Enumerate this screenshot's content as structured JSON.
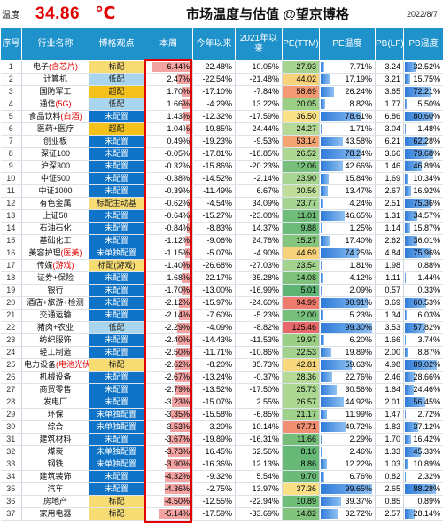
{
  "header": {
    "label": "温度",
    "temperature": "34.86",
    "unit": "℃",
    "title": "市场温度与估值 @望京博格",
    "date": "2022/8/7"
  },
  "columns": [
    "序号",
    "行业名称",
    "博格观点",
    "本周",
    "今年以来",
    "2021年以来",
    "PE(TTM)",
    "PE温度",
    "PB(LF)",
    "PB温度"
  ],
  "colors": {
    "header_bg": "#1f92cc",
    "underweight": "#0f73c7",
    "lowweight": "#a9d6ee",
    "overweight": "#f4c21b",
    "week_bar": "#f4a3a3",
    "highlight_red": "#e00000"
  },
  "rows": [
    {
      "seq": "1",
      "name": "电子",
      "sub": "(含芯片)",
      "view": "标配",
      "vc": "h",
      "week": "6.44%",
      "ytd": "-22.48%",
      "since21": "-10.05%",
      "pe": "27.93",
      "pe_temp": "7.71%",
      "pb": "3.24",
      "pb_temp": "32.52%",
      "pe_level": 0.077,
      "pb_level": 0.325,
      "week_mag": 1.0,
      "pe_c": "#a6d490"
    },
    {
      "seq": "2",
      "name": "计算机",
      "sub": "",
      "view": "低配",
      "vc": "l",
      "week": "2.47%",
      "ytd": "-22.54%",
      "since21": "-21.48%",
      "pe": "44.02",
      "pe_temp": "17.19%",
      "pb": "3.21",
      "pb_temp": "15.75%",
      "pe_level": 0.172,
      "pb_level": 0.158,
      "week_mag": 0.38,
      "pe_c": "#f8d37a"
    },
    {
      "seq": "3",
      "name": "国防军工",
      "sub": "",
      "view": "超配",
      "vc": "o",
      "week": "1.70%",
      "ytd": "-17.10%",
      "since21": "-7.84%",
      "pe": "58.69",
      "pe_temp": "26.24%",
      "pb": "3.65",
      "pb_temp": "72.21%",
      "pe_level": 0.262,
      "pb_level": 0.722,
      "week_mag": 0.26,
      "pe_c": "#f39a74"
    },
    {
      "seq": "4",
      "name": "通信",
      "sub": "(5G)",
      "view": "低配",
      "vc": "l",
      "week": "1.66%",
      "ytd": "-4.29%",
      "since21": "13.22%",
      "pe": "20.05",
      "pe_temp": "8.82%",
      "pb": "1.77",
      "pb_temp": "5.50%",
      "pe_level": 0.088,
      "pb_level": 0.055,
      "week_mag": 0.26,
      "pe_c": "#9ccf86"
    },
    {
      "seq": "5",
      "name": "食品饮料",
      "sub": "(白酒)",
      "view": "未配置",
      "vc": "u",
      "week": "1.43%",
      "ytd": "-12.32%",
      "since21": "-17.59%",
      "pe": "36.50",
      "pe_temp": "78.61%",
      "pb": "6.86",
      "pb_temp": "80.60%",
      "pe_level": 0.786,
      "pb_level": 0.806,
      "week_mag": 0.22,
      "pe_c": "#fae087"
    },
    {
      "seq": "6",
      "name": "医药+医疗",
      "sub": "",
      "view": "超配",
      "vc": "o",
      "week": "1.04%",
      "ytd": "-19.85%",
      "since21": "-24.44%",
      "pe": "24.27",
      "pe_temp": "1.71%",
      "pb": "3.04",
      "pb_temp": "1.48%",
      "pe_level": 0.017,
      "pb_level": 0.015,
      "week_mag": 0.16,
      "pe_c": "#b5da97"
    },
    {
      "seq": "7",
      "name": "创业板",
      "sub": "",
      "view": "未配置",
      "vc": "u",
      "week": "0.49%",
      "ytd": "-19.23%",
      "since21": "-9.53%",
      "pe": "53.14",
      "pe_temp": "43.58%",
      "pb": "6.21",
      "pb_temp": "62.28%",
      "pe_level": 0.436,
      "pb_level": 0.623,
      "week_mag": 0.08,
      "pe_c": "#f4a573"
    },
    {
      "seq": "8",
      "name": "深证100",
      "sub": "",
      "view": "未配置",
      "vc": "u",
      "week": "-0.05%",
      "ytd": "-17.81%",
      "since21": "-18.85%",
      "pe": "26.52",
      "pe_temp": "78.24%",
      "pb": "3.66",
      "pb_temp": "79.68%",
      "pe_level": 0.782,
      "pb_level": 0.797,
      "week_mag": 0.01,
      "pe_c": "#abd792"
    },
    {
      "seq": "9",
      "name": "沪深300",
      "sub": "",
      "view": "未配置",
      "vc": "u",
      "week": "-0.32%",
      "ytd": "-15.86%",
      "since21": "-20.23%",
      "pe": "12.06",
      "pe_temp": "42.66%",
      "pb": "1.46",
      "pb_temp": "46.89%",
      "pe_level": 0.427,
      "pb_level": 0.469,
      "week_mag": 0.05,
      "pe_c": "#77bf7a"
    },
    {
      "seq": "10",
      "name": "中证500",
      "sub": "",
      "view": "未配置",
      "vc": "u",
      "week": "-0.38%",
      "ytd": "-14.52%",
      "since21": "-2.14%",
      "pe": "23.90",
      "pe_temp": "15.84%",
      "pb": "1.69",
      "pb_temp": "10.34%",
      "pe_level": 0.158,
      "pb_level": 0.103,
      "week_mag": 0.06,
      "pe_c": "#a8d591"
    },
    {
      "seq": "11",
      "name": "中证1000",
      "sub": "",
      "view": "未配置",
      "vc": "u",
      "week": "-0.39%",
      "ytd": "-11.49%",
      "since21": "6.67%",
      "pe": "30.56",
      "pe_temp": "13.47%",
      "pb": "2.67",
      "pb_temp": "16.92%",
      "pe_level": 0.135,
      "pb_level": 0.169,
      "week_mag": 0.06,
      "pe_c": "#c0de9a"
    },
    {
      "seq": "12",
      "name": "有色金属",
      "sub": "",
      "view": "标配主动基",
      "vc": "h",
      "week": "-0.62%",
      "ytd": "-4.54%",
      "since21": "34.09%",
      "pe": "23.77",
      "pe_temp": "4.24%",
      "pb": "2.51",
      "pb_temp": "75.36%",
      "pe_level": 0.042,
      "pb_level": 0.754,
      "week_mag": 0.1,
      "pe_c": "#a5d490"
    },
    {
      "seq": "13",
      "name": "上证50",
      "sub": "",
      "view": "未配置",
      "vc": "u",
      "week": "-0.64%",
      "ytd": "-15.27%",
      "since21": "-23.08%",
      "pe": "11.01",
      "pe_temp": "46.65%",
      "pb": "1.31",
      "pb_temp": "34.57%",
      "pe_level": 0.467,
      "pb_level": 0.346,
      "week_mag": 0.1,
      "pe_c": "#70bc79"
    },
    {
      "seq": "14",
      "name": "石油石化",
      "sub": "",
      "view": "未配置",
      "vc": "u",
      "week": "-0.84%",
      "ytd": "-8.83%",
      "since21": "14.37%",
      "pe": "9.88",
      "pe_temp": "1.25%",
      "pb": "1.14",
      "pb_temp": "15.87%",
      "pe_level": 0.013,
      "pb_level": 0.159,
      "week_mag": 0.13,
      "pe_c": "#6cbb78"
    },
    {
      "seq": "15",
      "name": "基础化工",
      "sub": "",
      "view": "未配置",
      "vc": "u",
      "week": "-1.12%",
      "ytd": "-9.06%",
      "since21": "24.76%",
      "pe": "15.27",
      "pe_temp": "17.40%",
      "pb": "2.62",
      "pb_temp": "36.01%",
      "pe_level": 0.174,
      "pb_level": 0.36,
      "week_mag": 0.17,
      "pe_c": "#86c57e"
    },
    {
      "seq": "16",
      "name": "美容护理",
      "sub": "(医美)",
      "view": "未单独配置",
      "vc": "u",
      "week": "-1.15%",
      "ytd": "-5.07%",
      "since21": "-4.90%",
      "pe": "44.69",
      "pe_temp": "74.25%",
      "pb": "4.84",
      "pb_temp": "75.96%",
      "pe_level": 0.743,
      "pb_level": 0.76,
      "week_mag": 0.18,
      "pe_c": "#f8d27a"
    },
    {
      "seq": "17",
      "name": "传媒",
      "sub": "(游戏)",
      "view": "标配(游戏)",
      "vc": "h",
      "week": "-1.40%",
      "ytd": "-26.68%",
      "since21": "-27.03%",
      "pe": "23.54",
      "pe_temp": "1.81%",
      "pb": "1.98",
      "pb_temp": "0.88%",
      "pe_level": 0.018,
      "pb_level": 0.009,
      "week_mag": 0.22,
      "pe_c": "#a3d38f"
    },
    {
      "seq": "18",
      "name": "证券+保险",
      "sub": "",
      "view": "未配置",
      "vc": "u",
      "week": "-1.68%",
      "ytd": "-22.17%",
      "since21": "-35.28%",
      "pe": "14.08",
      "pe_temp": "4.12%",
      "pb": "1.11",
      "pb_temp": "1.44%",
      "pe_level": 0.041,
      "pb_level": 0.014,
      "week_mag": 0.26,
      "pe_c": "#7fc27c"
    },
    {
      "seq": "19",
      "name": "银行",
      "sub": "",
      "view": "未配置",
      "vc": "u",
      "week": "-1.70%",
      "ytd": "-13.00%",
      "since21": "-16.99%",
      "pe": "5.01",
      "pe_temp": "2.09%",
      "pb": "0.57",
      "pb_temp": "0.33%",
      "pe_level": 0.021,
      "pb_level": 0.003,
      "week_mag": 0.26,
      "pe_c": "#5eb475"
    },
    {
      "seq": "20",
      "name": "酒店+旅游+检测",
      "sub": "",
      "view": "未配置",
      "vc": "u",
      "week": "-2.12%",
      "ytd": "-15.97%",
      "since21": "-24.60%",
      "pe": "94.99",
      "pe_temp": "90.91%",
      "pb": "3.69",
      "pb_temp": "60.53%",
      "pe_level": 0.909,
      "pb_level": 0.605,
      "week_mag": 0.33,
      "pe_c": "#ee7b6e"
    },
    {
      "seq": "21",
      "name": "交通运输",
      "sub": "",
      "view": "未配置",
      "vc": "u",
      "week": "-2.14%",
      "ytd": "-7.60%",
      "since21": "-5.23%",
      "pe": "12.00",
      "pe_temp": "5.23%",
      "pb": "1.34",
      "pb_temp": "6.03%",
      "pe_level": 0.052,
      "pb_level": 0.06,
      "week_mag": 0.33,
      "pe_c": "#77bf7a"
    },
    {
      "seq": "22",
      "name": "猪肉+农业",
      "sub": "",
      "view": "低配",
      "vc": "l",
      "week": "-2.29%",
      "ytd": "-4.09%",
      "since21": "-8.82%",
      "pe": "125.46",
      "pe_temp": "99.30%",
      "pb": "3.53",
      "pb_temp": "57.82%",
      "pe_level": 0.993,
      "pb_level": 0.578,
      "week_mag": 0.36,
      "pe_c": "#e8696b"
    },
    {
      "seq": "23",
      "name": "纺织服饰",
      "sub": "",
      "view": "未配置",
      "vc": "u",
      "week": "-2.40%",
      "ytd": "-14.43%",
      "since21": "-11.53%",
      "pe": "19.97",
      "pe_temp": "6.20%",
      "pb": "1.66",
      "pb_temp": "3.74%",
      "pe_level": 0.062,
      "pb_level": 0.037,
      "week_mag": 0.37,
      "pe_c": "#9ccf86"
    },
    {
      "seq": "24",
      "name": "轻工制造",
      "sub": "",
      "view": "未配置",
      "vc": "u",
      "week": "-2.50%",
      "ytd": "-11.71%",
      "since21": "-10.86%",
      "pe": "22.53",
      "pe_temp": "19.89%",
      "pb": "2.00",
      "pb_temp": "8.87%",
      "pe_level": 0.199,
      "pb_level": 0.089,
      "week_mag": 0.39,
      "pe_c": "#a2d28e"
    },
    {
      "seq": "25",
      "name": "电力设备",
      "sub": "(电池光伏)",
      "view": "标配",
      "vc": "h",
      "week": "-2.62%",
      "ytd": "-8.20%",
      "since21": "35.73%",
      "pe": "42.81",
      "pe_temp": "59.63%",
      "pb": "4.98",
      "pb_temp": "89.02%",
      "pe_level": 0.596,
      "pb_level": 0.89,
      "week_mag": 0.41,
      "pe_c": "#f8d87d"
    },
    {
      "seq": "26",
      "name": "机械设备",
      "sub": "",
      "view": "未配置",
      "vc": "u",
      "week": "-2.67%",
      "ytd": "-13.24%",
      "since21": "-0.37%",
      "pe": "28.36",
      "pe_temp": "22.76%",
      "pb": "2.46",
      "pb_temp": "28.66%",
      "pe_level": 0.228,
      "pb_level": 0.287,
      "week_mag": 0.41,
      "pe_c": "#b5da97"
    },
    {
      "seq": "27",
      "name": "商贸零售",
      "sub": "",
      "view": "未配置",
      "vc": "u",
      "week": "-2.79%",
      "ytd": "-13.52%",
      "since21": "-17.50%",
      "pe": "25.73",
      "pe_temp": "30.56%",
      "pb": "1.84",
      "pb_temp": "24.46%",
      "pe_level": 0.306,
      "pb_level": 0.245,
      "week_mag": 0.43,
      "pe_c": "#abd792"
    },
    {
      "seq": "28",
      "name": "发电厂",
      "sub": "",
      "view": "未配置",
      "vc": "u",
      "week": "-3.23%",
      "ytd": "-15.07%",
      "since21": "2.55%",
      "pe": "26.57",
      "pe_temp": "44.92%",
      "pb": "2.01",
      "pb_temp": "56.45%",
      "pe_level": 0.449,
      "pb_level": 0.565,
      "week_mag": 0.5,
      "pe_c": "#abd792"
    },
    {
      "seq": "29",
      "name": "环保",
      "sub": "",
      "view": "未单独配置",
      "vc": "u",
      "week": "-3.35%",
      "ytd": "-15.58%",
      "since21": "-6.85%",
      "pe": "21.17",
      "pe_temp": "11.99%",
      "pb": "1.47",
      "pb_temp": "2.72%",
      "pe_level": 0.12,
      "pb_level": 0.027,
      "week_mag": 0.52,
      "pe_c": "#9fd08c"
    },
    {
      "seq": "30",
      "name": "综合",
      "sub": "",
      "view": "未单独配置",
      "vc": "u",
      "week": "-3.53%",
      "ytd": "-3.20%",
      "since21": "10.14%",
      "pe": "67.71",
      "pe_temp": "49.72%",
      "pb": "1.83",
      "pb_temp": "37.12%",
      "pe_level": 0.497,
      "pb_level": 0.371,
      "week_mag": 0.55,
      "pe_c": "#f18f72"
    },
    {
      "seq": "31",
      "name": "建筑材料",
      "sub": "",
      "view": "未配置",
      "vc": "u",
      "week": "-3.67%",
      "ytd": "-19.89%",
      "since21": "-16.31%",
      "pe": "11.66",
      "pe_temp": "2.29%",
      "pb": "1.70",
      "pb_temp": "16.42%",
      "pe_level": 0.023,
      "pb_level": 0.164,
      "week_mag": 0.57,
      "pe_c": "#74be79"
    },
    {
      "seq": "32",
      "name": "煤炭",
      "sub": "",
      "view": "未单独配置",
      "vc": "u",
      "week": "-3.73%",
      "ytd": "16.45%",
      "since21": "62.56%",
      "pe": "8.16",
      "pe_temp": "2.46%",
      "pb": "1.33",
      "pb_temp": "45.33%",
      "pe_level": 0.025,
      "pb_level": 0.453,
      "week_mag": 0.58,
      "pe_c": "#66b877"
    },
    {
      "seq": "33",
      "name": "钢铁",
      "sub": "",
      "view": "未单独配置",
      "vc": "u",
      "week": "-3.90%",
      "ytd": "-16.36%",
      "since21": "12.13%",
      "pe": "8.86",
      "pe_temp": "12.22%",
      "pb": "1.03",
      "pb_temp": "10.89%",
      "pe_level": 0.122,
      "pb_level": 0.109,
      "week_mag": 0.61,
      "pe_c": "#68b977"
    },
    {
      "seq": "34",
      "name": "建筑装饰",
      "sub": "",
      "view": "未配置",
      "vc": "u",
      "week": "-4.32%",
      "ytd": "-9.32%",
      "since21": "5.54%",
      "pe": "9.70",
      "pe_temp": "6.76%",
      "pb": "0.82",
      "pb_temp": "2.32%",
      "pe_level": 0.068,
      "pb_level": 0.023,
      "week_mag": 0.67,
      "pe_c": "#6bba78"
    },
    {
      "seq": "35",
      "name": "汽车",
      "sub": "",
      "view": "未配置",
      "vc": "u",
      "week": "-4.36%",
      "ytd": "-2.75%",
      "since21": "13.97%",
      "pe": "37.36",
      "pe_temp": "99.65%",
      "pb": "2.65",
      "pb_temp": "88.28%",
      "pe_level": 0.997,
      "pb_level": 0.883,
      "week_mag": 0.68,
      "pe_c": "#fae185"
    },
    {
      "seq": "36",
      "name": "房地产",
      "sub": "",
      "view": "标配",
      "vc": "h",
      "week": "-4.50%",
      "ytd": "-12.55%",
      "since21": "-22.94%",
      "pe": "10.89",
      "pe_temp": "39.37%",
      "pb": "0.85",
      "pb_temp": "0.89%",
      "pe_level": 0.394,
      "pb_level": 0.009,
      "week_mag": 0.7,
      "pe_c": "#70bc79"
    },
    {
      "seq": "37",
      "name": "家用电器",
      "sub": "",
      "view": "标配",
      "vc": "h",
      "week": "-5.14%",
      "ytd": "-17.59%",
      "since21": "-33.69%",
      "pe": "14.82",
      "pe_temp": "32.72%",
      "pb": "2.57",
      "pb_temp": "28.14%",
      "pe_level": 0.327,
      "pb_level": 0.281,
      "week_mag": 0.8,
      "pe_c": "#82c37d"
    }
  ]
}
